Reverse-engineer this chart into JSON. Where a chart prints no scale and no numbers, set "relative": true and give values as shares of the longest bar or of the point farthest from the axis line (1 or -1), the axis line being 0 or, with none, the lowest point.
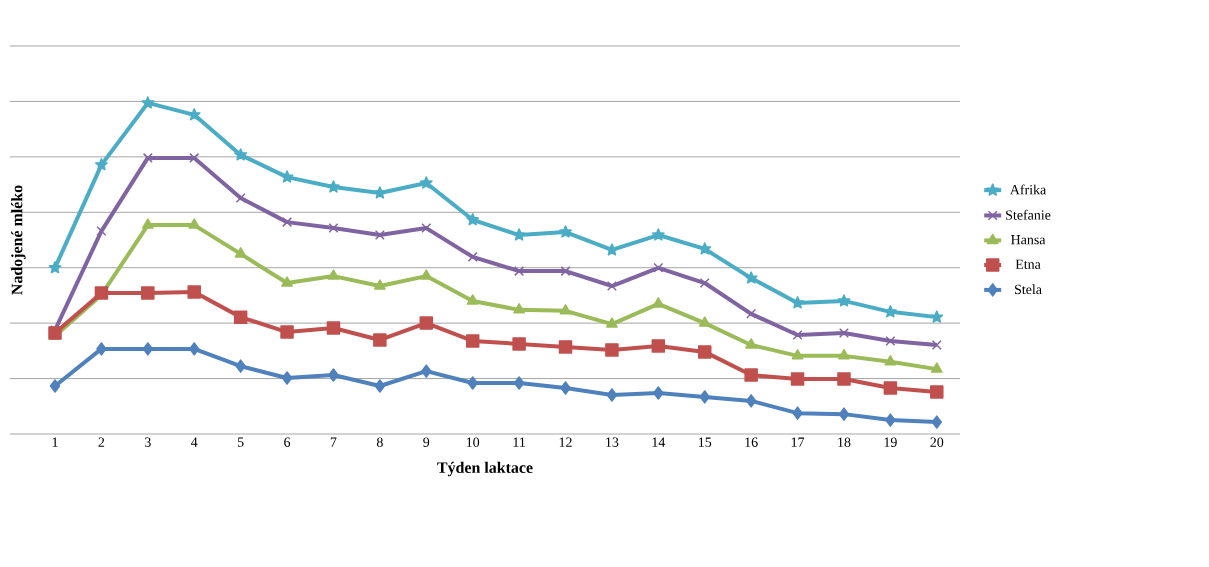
{
  "chart_data": {
    "type": "line",
    "relative": true,
    "xlabel": "Týden laktace",
    "ylabel": "Nadojené mléko",
    "grid": "y",
    "legend": "right",
    "categories": [
      "1",
      "2",
      "3",
      "4",
      "5",
      "6",
      "7",
      "8",
      "9",
      "10",
      "11",
      "12",
      "13",
      "14",
      "15",
      "16",
      "17",
      "18",
      "19",
      "20"
    ],
    "series": [
      {
        "name": "Afrika",
        "color": "#4bacc6",
        "marker": "star",
        "values": [
          0.502,
          0.813,
          1,
          0.964,
          0.843,
          0.776,
          0.746,
          0.728,
          0.758,
          0.647,
          0.601,
          0.61,
          0.556,
          0.601,
          0.559,
          0.471,
          0.396,
          0.402,
          0.369,
          0.353
        ]
      },
      {
        "name": "Stefanie",
        "color": "#8064a2",
        "marker": "cross",
        "values": [
          0.314,
          0.613,
          0.834,
          0.834,
          0.713,
          0.64,
          0.622,
          0.601,
          0.622,
          0.535,
          0.492,
          0.492,
          0.447,
          0.502,
          0.456,
          0.363,
          0.299,
          0.305,
          0.281,
          0.269
        ]
      },
      {
        "name": "Hansa",
        "color": "#9bbb59",
        "marker": "triangle",
        "values": [
          0.296,
          0.42,
          0.631,
          0.631,
          0.544,
          0.456,
          0.477,
          0.447,
          0.477,
          0.402,
          0.375,
          0.372,
          0.332,
          0.393,
          0.335,
          0.269,
          0.236,
          0.236,
          0.218,
          0.196
        ]
      },
      {
        "name": "Etna",
        "color": "#c0504d",
        "marker": "square",
        "values": [
          0.305,
          0.426,
          0.426,
          0.429,
          0.353,
          0.308,
          0.32,
          0.284,
          0.335,
          0.281,
          0.272,
          0.263,
          0.254,
          0.266,
          0.248,
          0.178,
          0.166,
          0.166,
          0.139,
          0.127
        ]
      },
      {
        "name": "Stela",
        "color": "#4f81bd",
        "marker": "diamond",
        "values": [
          0.145,
          0.257,
          0.257,
          0.257,
          0.205,
          0.169,
          0.178,
          0.145,
          0.19,
          0.154,
          0.154,
          0.139,
          0.118,
          0.124,
          0.112,
          0.1,
          0.063,
          0.06,
          0.042,
          0.036
        ]
      }
    ]
  }
}
